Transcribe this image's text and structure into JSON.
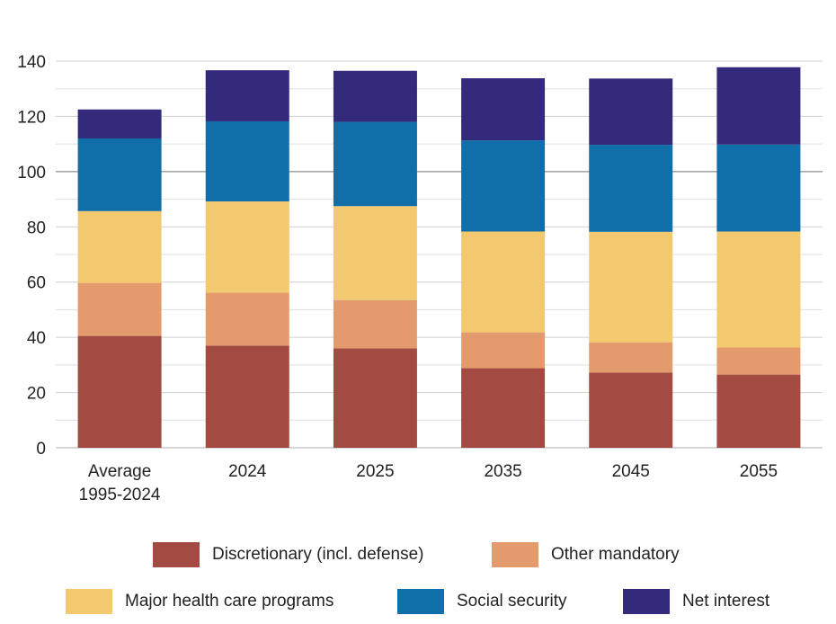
{
  "chart_data": {
    "type": "bar",
    "stacked": true,
    "title": "",
    "xlabel": "",
    "ylabel": "",
    "ylim": [
      0,
      140
    ],
    "yticks": [
      0,
      20,
      40,
      60,
      80,
      100,
      120,
      140
    ],
    "categories": [
      "Average 1995-2024",
      "2024",
      "2025",
      "2035",
      "2045",
      "2055"
    ],
    "category_lines": [
      [
        "Average",
        "1995-2024"
      ],
      [
        "2024"
      ],
      [
        "2025"
      ],
      [
        "2035"
      ],
      [
        "2045"
      ],
      [
        "2055"
      ]
    ],
    "series": [
      {
        "name": "Discretionary (incl. defense)",
        "color": "#a34a42",
        "values": [
          40.5,
          37,
          36,
          28.8,
          27.2,
          26.5
        ]
      },
      {
        "name": "Other mandatory",
        "color": "#e39b6d",
        "values": [
          19.2,
          19.2,
          17.5,
          13,
          11,
          9.8
        ]
      },
      {
        "name": "Major health care programs",
        "color": "#f3c96f",
        "values": [
          26,
          33,
          34,
          36.5,
          40,
          42
        ]
      },
      {
        "name": "Social security",
        "color": "#106ea8",
        "values": [
          26.3,
          29,
          30.5,
          33,
          31.5,
          31.5
        ]
      },
      {
        "name": "Net interest",
        "color": "#332a7c",
        "values": [
          10.5,
          18.5,
          18.5,
          22.5,
          24,
          28
        ]
      }
    ],
    "legend_rows": [
      [
        0,
        1
      ],
      [
        2,
        3,
        4
      ]
    ],
    "grid": true,
    "legend_position": "bottom"
  }
}
